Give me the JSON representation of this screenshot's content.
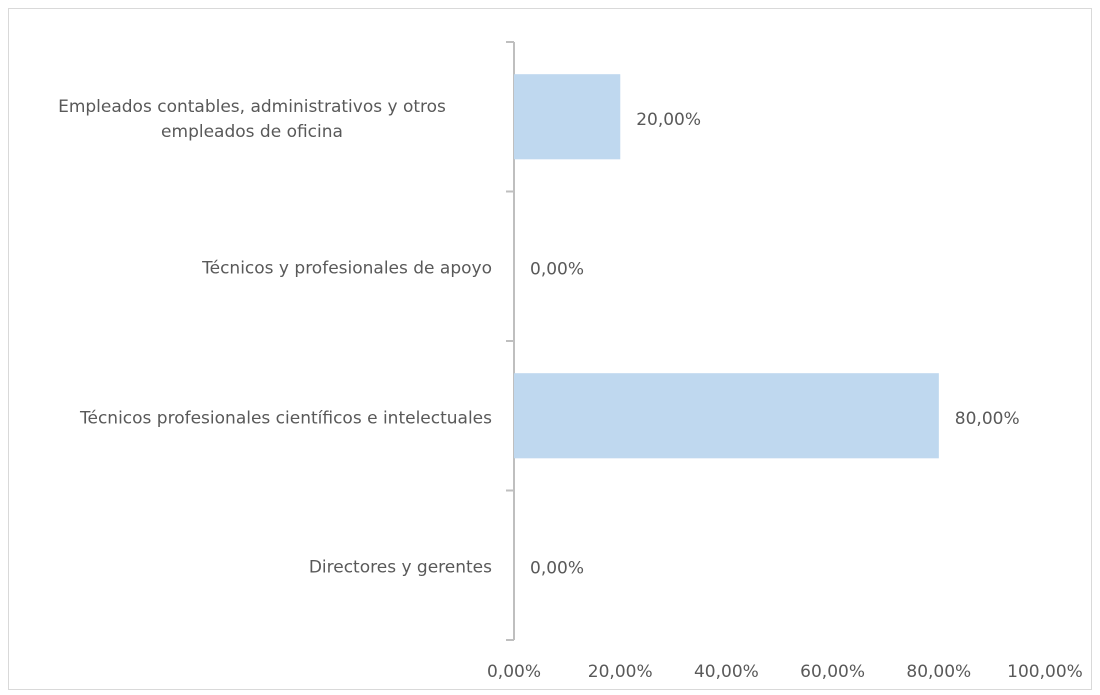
{
  "chart_data": {
    "type": "barh",
    "categories": [
      "Directores y gerentes",
      "Técnicos profesionales científicos e intelectuales",
      "Técnicos y profesionales de apoyo",
      "Empleados contables, administrativos y otros empleados de oficina"
    ],
    "values": [
      0,
      80,
      0,
      20
    ],
    "value_labels": [
      "0,00%",
      "80,00%",
      "0,00%",
      "20,00%"
    ],
    "color": "#9dc3e6",
    "xlim": [
      0,
      100
    ],
    "xticks": [
      {
        "value": 0,
        "label": "0,00%"
      },
      {
        "value": 20,
        "label": "20,00%"
      },
      {
        "value": 40,
        "label": "40,00%"
      },
      {
        "value": 60,
        "label": "60,00%"
      },
      {
        "value": 80,
        "label": "80,00%"
      },
      {
        "value": 100,
        "label": "100,00%"
      }
    ]
  }
}
